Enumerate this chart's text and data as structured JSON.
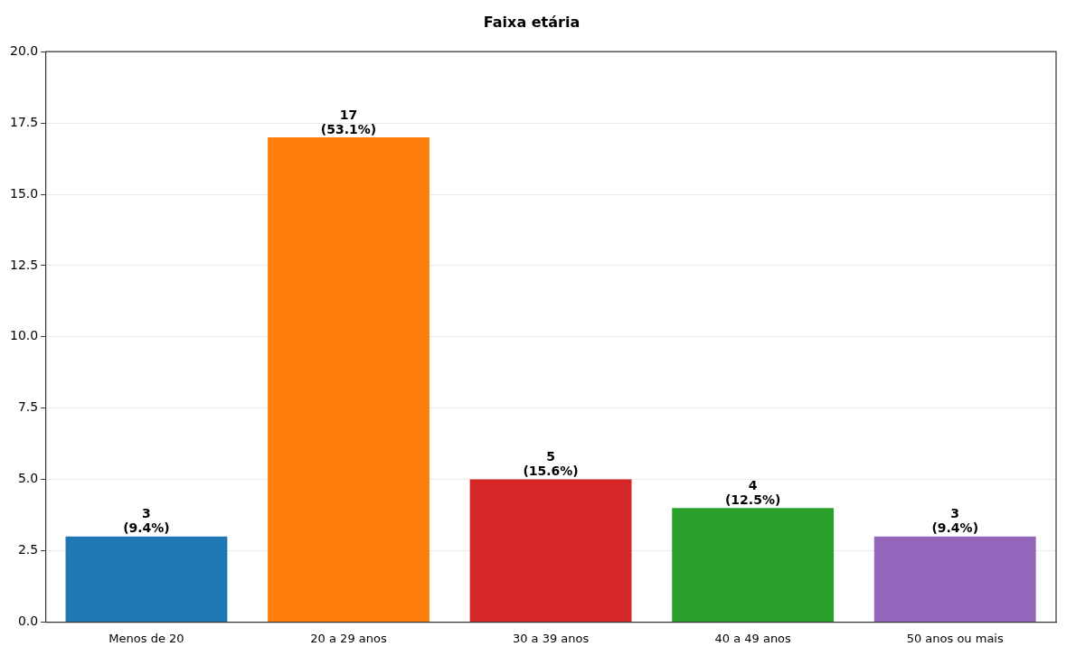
{
  "chart_data": {
    "type": "bar",
    "title": "Faixa etária",
    "categories": [
      "Menos de 20",
      "20 a 29 anos",
      "30 a 39 anos",
      "40 a 49 anos",
      "50 anos ou mais"
    ],
    "values": [
      3,
      17,
      5,
      4,
      3
    ],
    "colors": [
      "#1f77b4",
      "#ff7f0e",
      "#d62728",
      "#2ca02c",
      "#9467bd"
    ],
    "value_labels": [
      "3\n(9.4%)",
      "17\n(53.1%)",
      "5\n(15.6%)",
      "4\n(12.5%)",
      "3\n(9.4%)"
    ],
    "ylim": [
      0,
      20
    ],
    "yticks": [
      {
        "value": 0,
        "label": "0.0"
      },
      2.5,
      {
        "value": 5,
        "label": "5.0"
      },
      7.5,
      {
        "value": 10,
        "label": "10.0"
      },
      12.5,
      {
        "value": 15,
        "label": "15.0"
      },
      17.5,
      {
        "value": 20,
        "label": "20.0"
      }
    ],
    "grid": "y",
    "legend": false
  }
}
